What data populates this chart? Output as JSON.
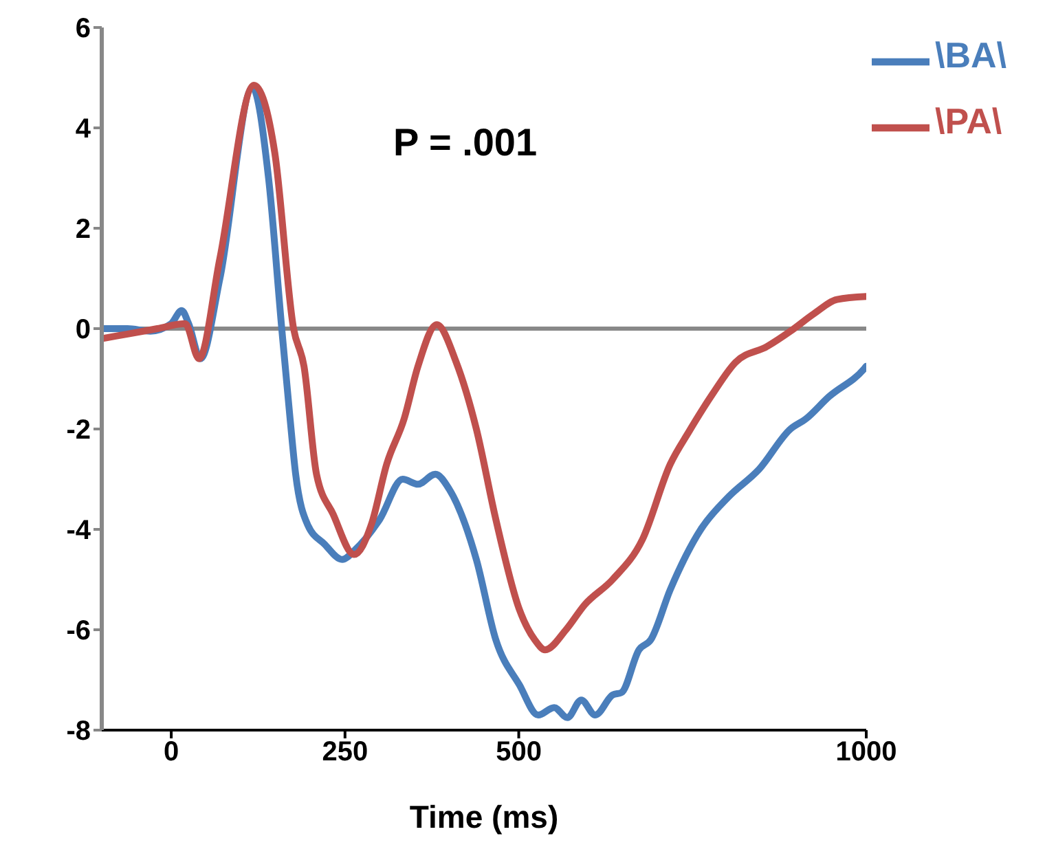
{
  "chart_data": {
    "type": "line",
    "xlabel": "Time (ms)",
    "xlim": [
      -100,
      1000
    ],
    "xticks": [
      0,
      250,
      500,
      1000
    ],
    "ylim": [
      -8,
      6
    ],
    "yticks": [
      -8,
      -6,
      -4,
      -2,
      0,
      2,
      4,
      6
    ],
    "legend": "top right",
    "grid": false,
    "marker": "none",
    "line_style": "solid",
    "annotations": [
      "P = .001"
    ],
    "ref_lines": [
      {
        "axis": "y",
        "value": 0,
        "color": "#888888"
      }
    ],
    "series": [
      {
        "name": "\\BA\\",
        "color": "#4a7ebb",
        "x": [
          -100,
          -63,
          -30,
          0,
          15,
          25,
          42,
          70,
          117,
          140,
          159,
          171,
          179,
          196,
          221,
          246,
          265,
          300,
          333,
          355,
          380,
          400,
          439,
          467,
          501,
          528,
          551,
          570,
          590,
          610,
          635,
          648,
          673,
          690,
          718,
          762,
          802,
          846,
          891,
          913,
          946,
          997,
          1000
        ],
        "values": [
          0,
          0,
          -0.05,
          0.1,
          0.36,
          0.1,
          -0.6,
          1.0,
          4.8,
          3.0,
          0,
          -1.8,
          -2.9,
          -3.9,
          -4.3,
          -4.6,
          -4.4,
          -3.8,
          -3.0,
          -3.1,
          -2.9,
          -3.2,
          -4.6,
          -6.2,
          -7.1,
          -7.7,
          -7.55,
          -7.75,
          -7.4,
          -7.7,
          -7.3,
          -7.25,
          -6.4,
          -6.2,
          -5.2,
          -4.0,
          -3.35,
          -2.8,
          -2.0,
          -1.8,
          -1.36,
          -0.8,
          -0.75
        ]
      },
      {
        "name": "\\PA\\",
        "color": "#c0504d",
        "x": [
          -100,
          -60,
          -20,
          20,
          40,
          70,
          119,
          149,
          176,
          191,
          209,
          233,
          263,
          288,
          310,
          335,
          355,
          382,
          410,
          439,
          467,
          501,
          523,
          538,
          568,
          595,
          635,
          678,
          718,
          745,
          779,
          812,
          858,
          891,
          925,
          958,
          1000
        ],
        "values": [
          -0.2,
          -0.1,
          0,
          0.1,
          -0.6,
          1.4,
          4.85,
          3.5,
          0,
          -0.75,
          -2.9,
          -3.7,
          -4.5,
          -3.9,
          -2.7,
          -1.8,
          -0.75,
          0.08,
          -0.67,
          -2.0,
          -3.8,
          -5.6,
          -6.2,
          -6.4,
          -6.0,
          -5.5,
          -5.0,
          -4.2,
          -2.7,
          -2.05,
          -1.3,
          -0.67,
          -0.35,
          -0.05,
          0.3,
          0.58,
          0.64
        ]
      }
    ]
  }
}
